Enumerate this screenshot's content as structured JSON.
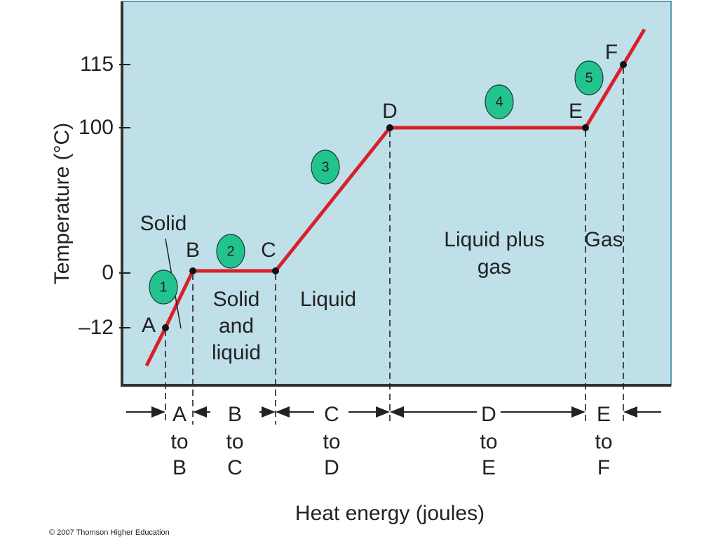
{
  "axis": {
    "y_title": "Temperature (°C)",
    "x_title": "Heat energy (joules)",
    "y_ticks": [
      "115",
      "100",
      "0",
      "–12"
    ]
  },
  "points": [
    "A",
    "B",
    "C",
    "D",
    "E",
    "F"
  ],
  "regions": {
    "solid": "Solid",
    "solid_liquid": [
      "Solid",
      "and",
      "liquid"
    ],
    "liquid": "Liquid",
    "liquid_gas": [
      "Liquid plus",
      "gas"
    ],
    "gas": "Gas"
  },
  "steps": [
    "1",
    "2",
    "3",
    "4",
    "5"
  ],
  "intervals": [
    [
      "A",
      "to",
      "B"
    ],
    [
      "B",
      "to",
      "C"
    ],
    [
      "C",
      "to",
      "D"
    ],
    [
      "D",
      "to",
      "E"
    ],
    [
      "E",
      "to",
      "F"
    ]
  ],
  "copyright": "© 2007 Thomson Higher Education"
}
